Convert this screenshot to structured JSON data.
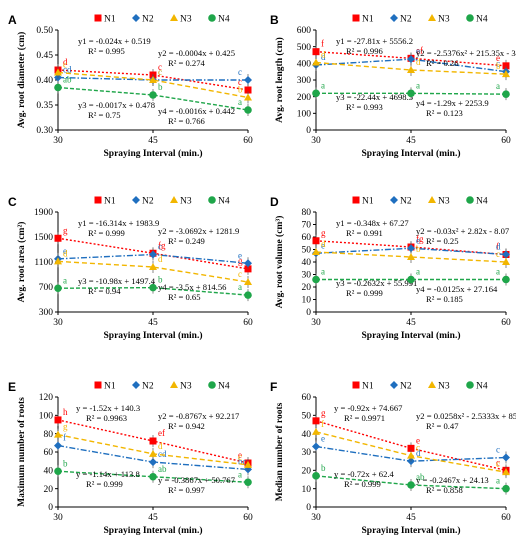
{
  "colors": {
    "N1": "#ff0000",
    "N2": "#1f6fbf",
    "N3": "#f2b600",
    "N4": "#1fa64a"
  },
  "legend": [
    "N1",
    "N2",
    "N3",
    "N4"
  ],
  "chart_data": [
    {
      "panel": "A",
      "type": "line",
      "xlabel": "Spraying Interval (min.)",
      "ylabel": "Avg. root diameter (cm)",
      "x": [
        30,
        45,
        60
      ],
      "ylim": [
        0.3,
        0.5
      ],
      "yticks": [
        "0.30",
        "0.35",
        "0.40",
        "0.45",
        "0.50"
      ],
      "series": [
        {
          "name": "N1",
          "values": [
            0.42,
            0.41,
            0.38
          ],
          "letters": [
            "d",
            "c",
            "c"
          ],
          "eq": [
            "y1 = -0.024x + 0.519",
            "R² = 0.995"
          ]
        },
        {
          "name": "N2",
          "values": [
            0.405,
            0.4,
            0.4
          ],
          "letters": [
            "cd",
            "c",
            "c"
          ],
          "eq": [
            "y2 = -0.0004x + 0.425",
            "R² = 0.274"
          ]
        },
        {
          "name": "N3",
          "values": [
            0.415,
            0.4,
            0.365
          ],
          "letters": [
            "c",
            "c",
            "b"
          ],
          "eq": [
            "y3 = -0.0017x + 0.478",
            "R² = 0.75"
          ]
        },
        {
          "name": "N4",
          "values": [
            0.385,
            0.37,
            0.34
          ],
          "letters": [
            "ab",
            "b",
            "a"
          ],
          "eq": [
            "y4 = -0.0016x + 0.442",
            "R² = 0.766"
          ]
        }
      ]
    },
    {
      "panel": "B",
      "type": "line",
      "xlabel": "Spraying Interval (min.)",
      "ylabel": "Avg. root length (cm)",
      "x": [
        30,
        45,
        60
      ],
      "ylim": [
        0,
        600
      ],
      "yticks": [
        "0",
        "100",
        "200",
        "300",
        "400",
        "500",
        "600"
      ],
      "series": [
        {
          "name": "N1",
          "values": [
            470,
            430,
            385
          ],
          "letters": [
            "f",
            "ef",
            "e"
          ],
          "eq": [
            "y1 = -27.81x + 5556.2",
            "R² = 0.996"
          ]
        },
        {
          "name": "N2",
          "values": [
            390,
            425,
            350
          ],
          "letters": [
            "d",
            "e",
            "c"
          ],
          "eq": [
            "y2 = -2.5376x² + 215.35x - 343",
            "R² = 0.26"
          ]
        },
        {
          "name": "N3",
          "values": [
            405,
            360,
            335
          ],
          "letters": [
            "d",
            "d",
            "b"
          ],
          "eq": [
            "y3 = -22.44x + 4698.5",
            "R² = 0.993"
          ]
        },
        {
          "name": "N4",
          "values": [
            220,
            220,
            215
          ],
          "letters": [
            "a",
            "a",
            "a"
          ],
          "eq": [
            "y4 = -1.29x + 2253.9",
            "R² = 0.123"
          ]
        }
      ]
    },
    {
      "panel": "C",
      "type": "line",
      "xlabel": "Spraying Interval (min.)",
      "ylabel": "Avg. root area (cm²)",
      "x": [
        30,
        45,
        60
      ],
      "ylim": [
        300,
        1900
      ],
      "yticks": [
        "300",
        "700",
        "1100",
        "1500",
        "1900"
      ],
      "series": [
        {
          "name": "N1",
          "values": [
            1480,
            1240,
            990
          ],
          "letters": [
            "g",
            "fg",
            "g"
          ],
          "eq": [
            "y1 = -16.314x + 1983.9",
            "R² = 0.999"
          ]
        },
        {
          "name": "N2",
          "values": [
            1150,
            1220,
            1080
          ],
          "letters": [
            "e",
            "c",
            "e"
          ],
          "eq": [
            "y2 = -3.0692x + 1281.9",
            "R² = 0.249"
          ]
        },
        {
          "name": "N3",
          "values": [
            1110,
            1020,
            780
          ],
          "letters": [
            "d",
            "d",
            "c"
          ],
          "eq": [
            "y3 = -10.98x + 1497.4",
            "R² = 0.94"
          ]
        },
        {
          "name": "N4",
          "values": [
            680,
            690,
            570
          ],
          "letters": [
            "a",
            "b",
            "a"
          ],
          "eq": [
            "y4 = -3.5x + 814.56",
            "R² = 0.65"
          ]
        }
      ]
    },
    {
      "panel": "D",
      "type": "line",
      "xlabel": "Spraying Interval (min.)",
      "ylabel": "Avg. root volume (cm³)",
      "x": [
        30,
        45,
        60
      ],
      "ylim": [
        0,
        80
      ],
      "yticks": [
        "0",
        "10",
        "20",
        "30",
        "40",
        "50",
        "60",
        "70",
        "80"
      ],
      "series": [
        {
          "name": "N1",
          "values": [
            57,
            52,
            46
          ],
          "letters": [
            "g",
            "fg",
            "f"
          ],
          "eq": [
            "y1 = -0.348x + 67.27",
            "R² = 0.991"
          ]
        },
        {
          "name": "N2",
          "values": [
            47,
            51,
            46
          ],
          "letters": [
            "e",
            "e",
            "d"
          ],
          "eq": [
            "y2 = -0.03x² + 2.82x - 8.07",
            "R² = 0.25"
          ]
        },
        {
          "name": "N3",
          "values": [
            48,
            44,
            40
          ],
          "letters": [
            "d",
            "b",
            "c"
          ],
          "eq": [
            "y3 = -0.2632x + 55.991",
            "R² = 0.999"
          ]
        },
        {
          "name": "N4",
          "values": [
            26,
            26,
            26
          ],
          "letters": [
            "a",
            "a",
            "a"
          ],
          "eq": [
            "y4 = -0.0125x + 27.164",
            "R² = 0.185"
          ]
        }
      ]
    },
    {
      "panel": "E",
      "type": "line",
      "xlabel": "Spraying Interval (min.)",
      "ylabel": "Maximum number of roots",
      "x": [
        30,
        45,
        60
      ],
      "ylim": [
        0,
        120
      ],
      "yticks": [
        "0",
        "20",
        "40",
        "60",
        "80",
        "100",
        "120"
      ],
      "series": [
        {
          "name": "N1",
          "values": [
            95,
            72,
            48
          ],
          "letters": [
            "h",
            "ef",
            "e"
          ],
          "eq": [
            "y = -1.52x + 140.3",
            "R² = 0.9963"
          ]
        },
        {
          "name": "N2",
          "values": [
            67,
            49,
            41
          ],
          "letters": [
            "f",
            "cd",
            "bc"
          ],
          "eq": [
            "y2 = -0.8767x + 92.217",
            "R² = 0.942"
          ]
        },
        {
          "name": "N3",
          "values": [
            79,
            58,
            46
          ],
          "letters": [
            "g",
            "d",
            "c"
          ],
          "eq": []
        },
        {
          "name": "N4",
          "values": [
            39,
            33,
            27
          ],
          "letters": [
            "b",
            "ab",
            "a"
          ],
          "eq": [
            "y = -1.14x + 113.8",
            "R² = 0.999",
            "y = -0.3867x + 50.767",
            "R² = 0.997"
          ]
        }
      ]
    },
    {
      "panel": "F",
      "type": "line",
      "xlabel": "Spraying Interval (min.)",
      "ylabel": "Median number of roots",
      "x": [
        30,
        45,
        60
      ],
      "ylim": [
        0,
        60
      ],
      "yticks": [
        "0",
        "10",
        "20",
        "30",
        "40",
        "50",
        "60"
      ],
      "series": [
        {
          "name": "N1",
          "values": [
            47,
            32,
            20
          ],
          "letters": [
            "g",
            "e",
            "c"
          ],
          "eq": [
            "y = -0.92x + 74.667",
            "R² = 0.9971"
          ]
        },
        {
          "name": "N2",
          "values": [
            33,
            25,
            27
          ],
          "letters": [
            "e",
            "d",
            "c"
          ],
          "eq": [
            "y2 = 0.0258x² - 2.5333x + 85.9",
            "R² = 0.47"
          ]
        },
        {
          "name": "N3",
          "values": [
            41,
            28,
            19
          ],
          "letters": [
            "f",
            "c",
            "c"
          ],
          "eq": []
        },
        {
          "name": "N4",
          "values": [
            17,
            12,
            10
          ],
          "letters": [
            "b",
            "ab",
            "a"
          ],
          "eq": [
            "y = -0.72x + 62.4",
            "R² = 0.999",
            "y = -0.2467x + 24.13",
            "R² = 0.858"
          ]
        }
      ]
    }
  ]
}
